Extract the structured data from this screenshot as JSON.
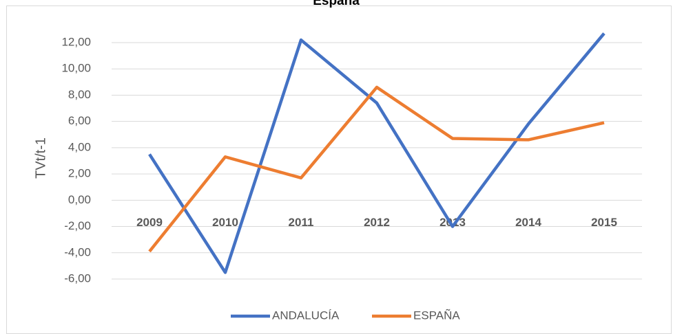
{
  "chart_data": {
    "type": "line",
    "title": "España",
    "y_label": "TVt/t-1",
    "categories": [
      "2009",
      "2010",
      "2011",
      "2012",
      "2013",
      "2014",
      "2015"
    ],
    "series": [
      {
        "name": "ANDALUCÍA",
        "color": "#4472c4",
        "values": [
          3.5,
          -5.5,
          12.2,
          7.4,
          -2.0,
          5.8,
          12.7
        ]
      },
      {
        "name": "ESPAÑA",
        "color": "#ed7d31",
        "values": [
          -3.9,
          3.3,
          1.7,
          8.6,
          4.7,
          4.6,
          5.9
        ]
      }
    ],
    "ylim": [
      -6,
      12
    ],
    "yticks": [
      {
        "value": -6,
        "label": "-6,00"
      },
      {
        "value": -4,
        "label": "-4,00"
      },
      {
        "value": -2,
        "label": "-2,00"
      },
      {
        "value": 0,
        "label": "0,00"
      },
      {
        "value": 2,
        "label": "2,00"
      },
      {
        "value": 4,
        "label": "4,00"
      },
      {
        "value": 6,
        "label": "6,00"
      },
      {
        "value": 8,
        "label": "8,00"
      },
      {
        "value": 10,
        "label": "10,00"
      },
      {
        "value": 12,
        "label": "12,00"
      }
    ],
    "grid": true,
    "legend": "bottom"
  }
}
